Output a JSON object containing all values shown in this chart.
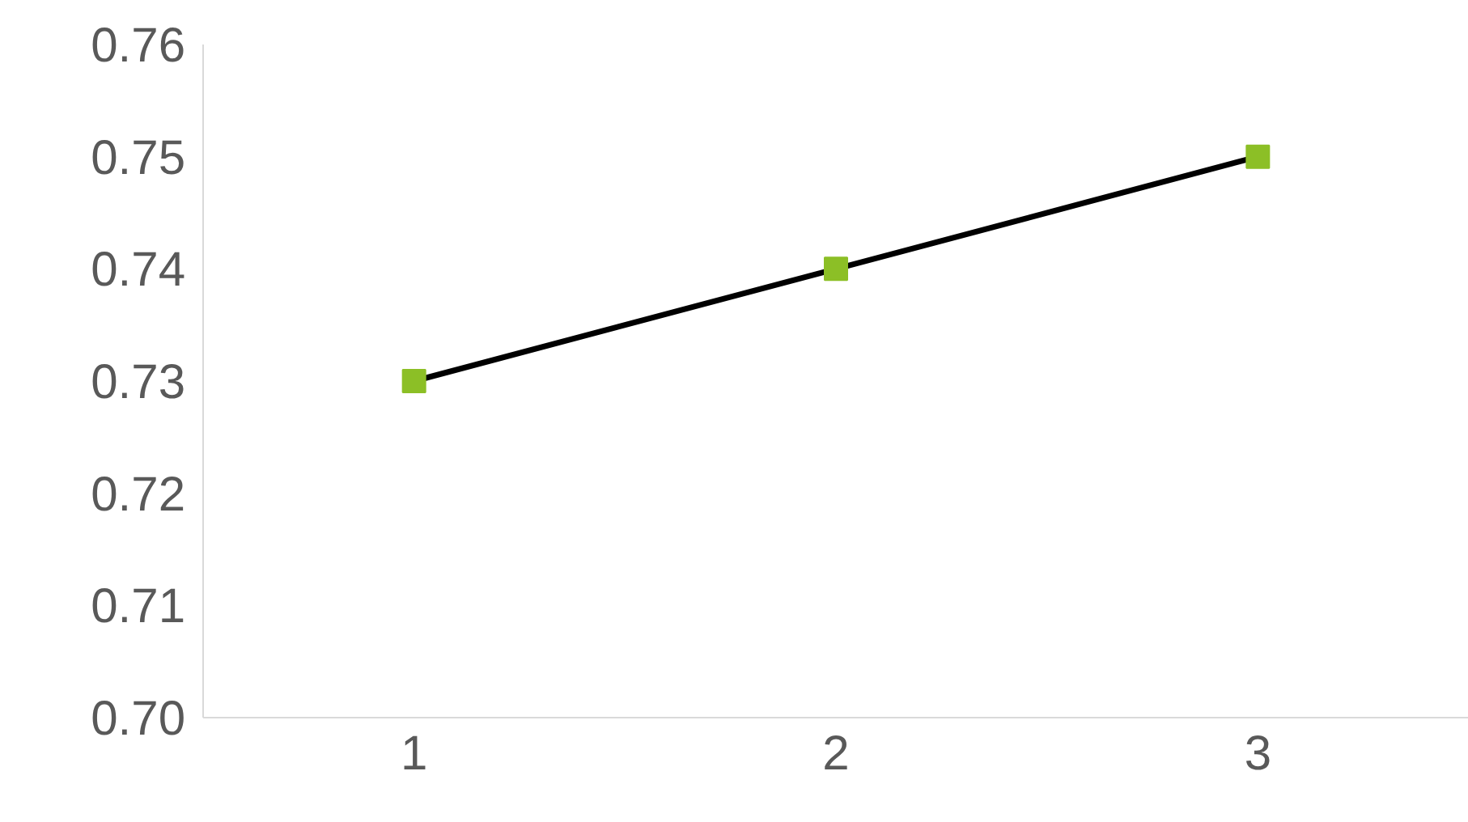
{
  "chart_data": {
    "type": "line",
    "categories": [
      "1",
      "2",
      "3"
    ],
    "series": [
      {
        "color": "#8cbf26",
        "values": [
          0.73,
          0.74,
          0.75
        ]
      }
    ],
    "ylim": [
      0.7,
      0.76
    ],
    "yticks": [
      {
        "value": 0.7,
        "label": "0.70"
      },
      {
        "value": 0.71,
        "label": "0.71"
      },
      {
        "value": 0.72,
        "label": "0.72"
      },
      {
        "value": 0.73,
        "label": "0.73"
      },
      {
        "value": 0.74,
        "label": "0.74"
      },
      {
        "value": 0.75,
        "label": "0.75"
      },
      {
        "value": 0.76,
        "label": "0.76"
      }
    ],
    "grid": false,
    "marker": "square",
    "line_style": "solid"
  }
}
